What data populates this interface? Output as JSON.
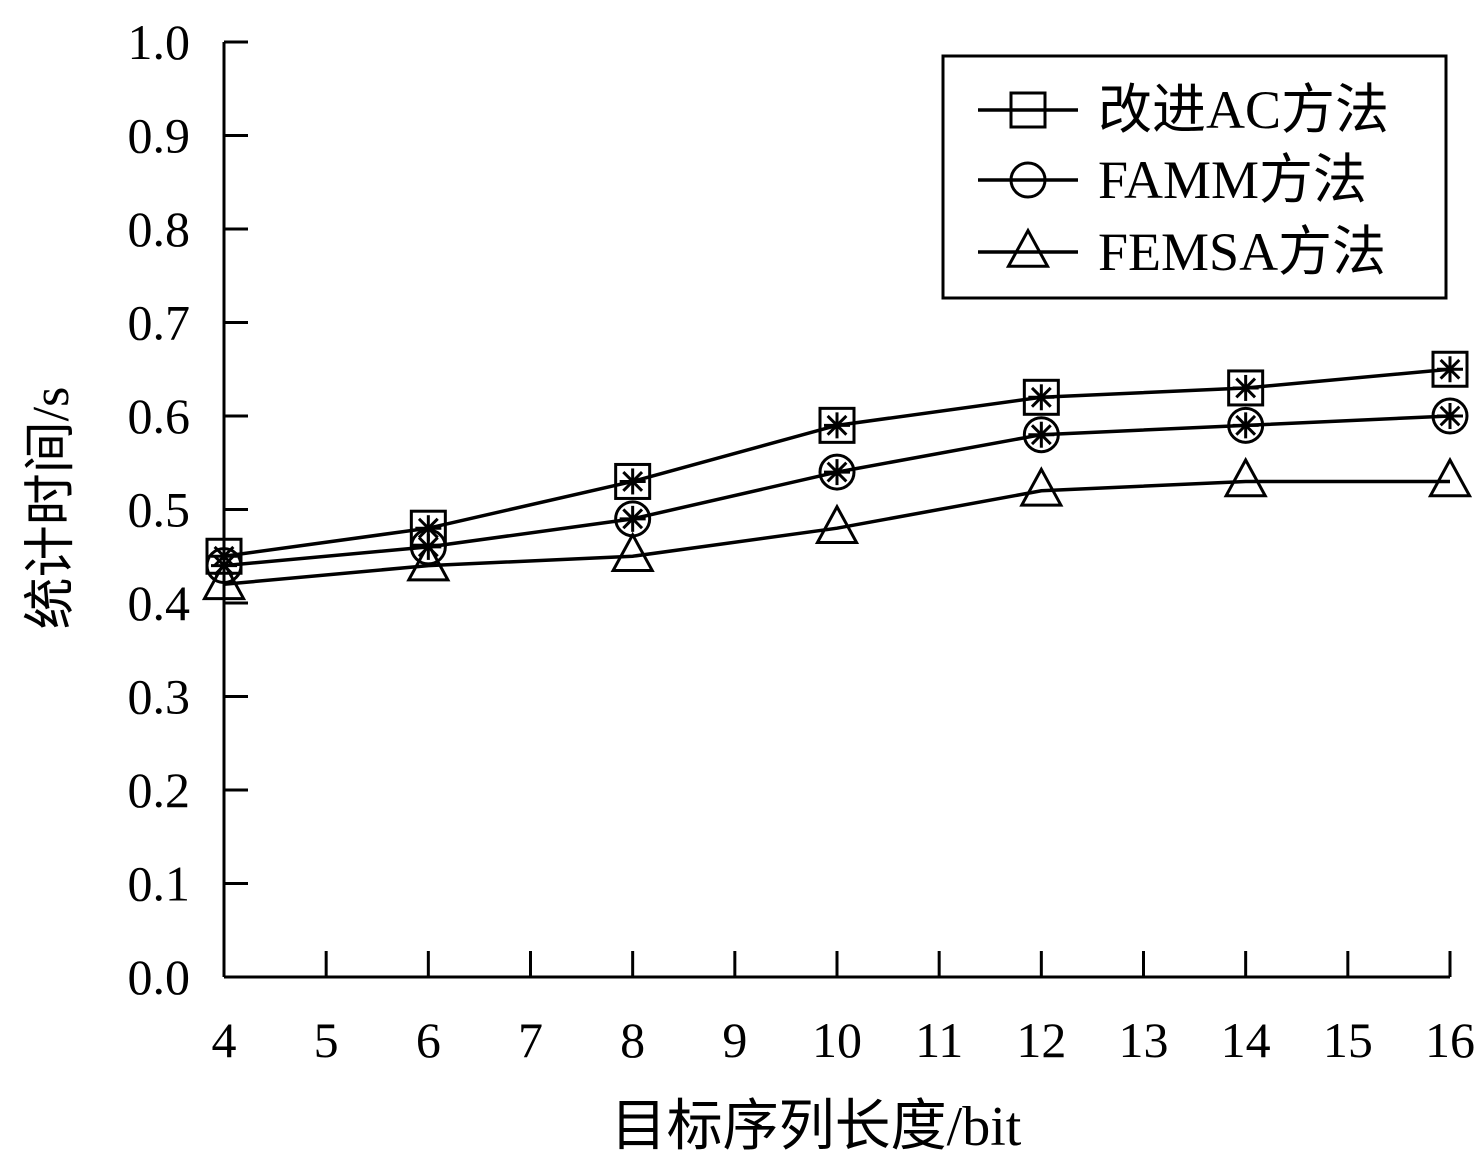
{
  "chart_data": {
    "type": "line",
    "xlabel": "目标序列长度/bit",
    "ylabel": "统计时间/s",
    "xlim": [
      4,
      16
    ],
    "ylim": [
      0.0,
      1.0
    ],
    "x_ticks": [
      "4",
      "5",
      "6",
      "7",
      "8",
      "9",
      "10",
      "11",
      "12",
      "13",
      "14",
      "15",
      "16"
    ],
    "y_ticks": [
      "0.0",
      "0.1",
      "0.2",
      "0.3",
      "0.4",
      "0.5",
      "0.6",
      "0.7",
      "0.8",
      "0.9",
      "1.0"
    ],
    "x": [
      4,
      6,
      8,
      10,
      12,
      14,
      16
    ],
    "grid": false,
    "legend_position": "top-right",
    "series": [
      {
        "name": "改进AC方法",
        "marker": "square",
        "values": [
          0.45,
          0.48,
          0.53,
          0.59,
          0.62,
          0.63,
          0.65
        ]
      },
      {
        "name": "FAMM方法",
        "marker": "circle",
        "values": [
          0.44,
          0.46,
          0.49,
          0.54,
          0.58,
          0.59,
          0.6
        ]
      },
      {
        "name": "FEMSA方法",
        "marker": "triangle",
        "values": [
          0.42,
          0.44,
          0.45,
          0.48,
          0.52,
          0.53,
          0.53
        ]
      }
    ]
  }
}
